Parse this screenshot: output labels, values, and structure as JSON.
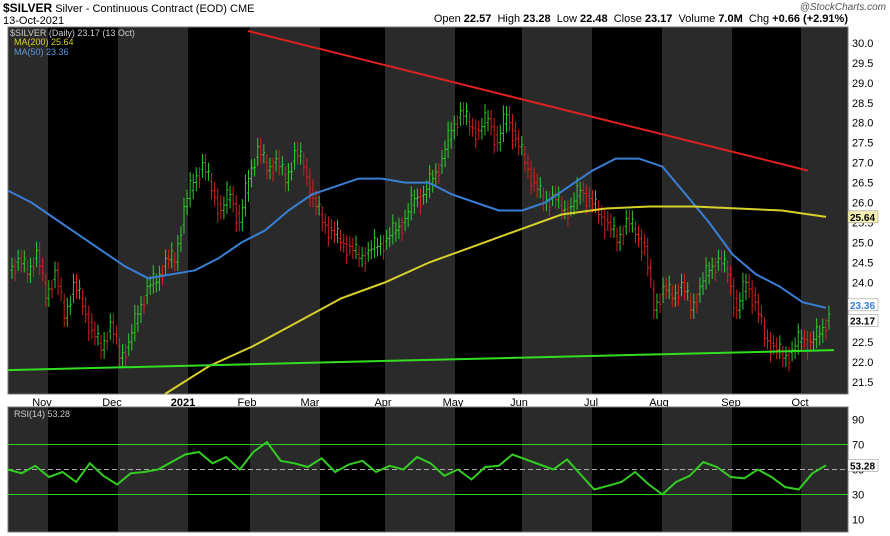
{
  "header": {
    "symbol": "$SILVER",
    "description": "Silver - Continuous Contract (EOD)",
    "exchange": "CME",
    "date": "13-Oct-2021",
    "watermark": "@StockCharts.com",
    "open_label": "Open",
    "open": "22.57",
    "high_label": "High",
    "high": "23.28",
    "low_label": "Low",
    "low": "22.48",
    "close_label": "Close",
    "close": "23.17",
    "volume_label": "Volume",
    "volume": "7.0M",
    "chg_label": "Chg",
    "chg": "+0.66 (+2.91%)"
  },
  "legend": {
    "price": "$SILVER (Daily) 23.17 (13 Oct)",
    "ma200": "MA(200) 25.64",
    "ma50": "MA(50) 23.36",
    "rsi": "RSI(14) 53.28"
  },
  "badges": {
    "ma200": "25.64",
    "ma50": "23.36",
    "close": "23.17",
    "rsi": "53.28"
  },
  "colors": {
    "up": "#2ecc2e",
    "down": "#d42020",
    "ma50": "#3a7fd5",
    "ma200": "#d8d02a",
    "resistance": "#e02020",
    "support": "#33dd22",
    "rsi": "#33cc22",
    "band": "#2a2a2a"
  },
  "chart_data": [
    {
      "type": "line",
      "title": "$SILVER Silver - Continuous Contract (EOD) CME",
      "x_ticks": [
        "Nov",
        "Dec",
        "2021",
        "Feb",
        "Mar",
        "Apr",
        "May",
        "Jun",
        "Jul",
        "Aug",
        "Sep",
        "Oct"
      ],
      "y_ticks": [
        21.5,
        22.0,
        22.5,
        23.0,
        23.5,
        24.0,
        24.5,
        25.0,
        25.5,
        26.0,
        26.5,
        27.0,
        27.5,
        28.0,
        28.5,
        29.0,
        29.5,
        30.0
      ],
      "ylim": [
        21.2,
        30.4
      ],
      "grid": false,
      "legend_position": "top-left",
      "series": [
        {
          "name": "$SILVER (Daily) 23.17 (13 Oct)",
          "values": [
            24.6,
            24.2,
            24.8,
            23.6,
            24.3,
            23.1,
            24.0,
            23.4,
            22.8,
            22.3,
            23.0,
            22.1,
            22.5,
            23.2,
            23.9,
            24.0,
            24.6,
            24.5,
            25.9,
            26.5,
            27.0,
            26.3,
            25.8,
            26.2,
            25.5,
            26.6,
            27.4,
            26.8,
            27.1,
            26.5,
            27.3,
            26.9,
            26.1,
            25.5,
            25.3,
            25.0,
            24.9,
            24.6,
            24.8,
            24.9,
            25.1,
            25.3,
            25.6,
            26.1,
            26.2,
            26.6,
            27.1,
            27.8,
            28.3,
            27.9,
            27.8,
            28.1,
            27.5,
            28.2,
            27.6,
            27.0,
            26.5,
            26.0,
            26.2,
            25.8,
            25.9,
            26.3,
            26.1,
            25.7,
            25.5,
            25.0,
            25.6,
            25.2,
            24.9,
            23.3,
            23.9,
            23.6,
            24.0,
            23.3,
            23.9,
            24.3,
            24.6,
            24.2,
            23.3,
            24.0,
            23.5,
            22.6,
            22.4,
            22.1,
            22.3,
            22.6,
            22.5,
            22.7,
            23.2
          ]
        },
        {
          "name": "MA(50) 23.36",
          "values": [
            26.3,
            26.0,
            25.6,
            25.2,
            24.8,
            24.4,
            24.1,
            24.2,
            24.3,
            24.6,
            25.0,
            25.3,
            25.8,
            26.2,
            26.4,
            26.6,
            26.6,
            26.5,
            26.5,
            26.2,
            26.0,
            25.8,
            25.8,
            26.0,
            26.4,
            26.8,
            27.1,
            27.1,
            26.9,
            26.2,
            25.5,
            24.7,
            24.2,
            23.9,
            23.5,
            23.36
          ]
        },
        {
          "name": "MA(200) 25.64",
          "values": [
            21.2,
            21.9,
            22.4,
            23.0,
            23.6,
            24.0,
            24.5,
            24.9,
            25.3,
            25.7,
            25.85,
            25.9,
            25.9,
            25.85,
            25.8,
            25.64
          ]
        }
      ]
    },
    {
      "type": "line",
      "title": "RSI(14) 53.28",
      "y_ticks": [
        10,
        30,
        50,
        70,
        90
      ],
      "ylim": [
        0,
        100
      ],
      "legend_position": "top-left",
      "series": [
        {
          "name": "RSI(14) 53.28",
          "values": [
            50,
            47,
            53,
            44,
            48,
            40,
            55,
            45,
            38,
            47,
            48,
            50,
            56,
            62,
            64,
            55,
            60,
            50,
            64,
            72,
            57,
            55,
            52,
            59,
            48,
            54,
            57,
            48,
            53,
            50,
            60,
            55,
            45,
            50,
            42,
            52,
            53,
            62,
            58,
            54,
            50,
            58,
            46,
            34,
            37,
            40,
            48,
            38,
            30,
            40,
            45,
            56,
            52,
            44,
            43,
            50,
            44,
            36,
            34,
            47,
            53.28
          ]
        }
      ]
    }
  ]
}
